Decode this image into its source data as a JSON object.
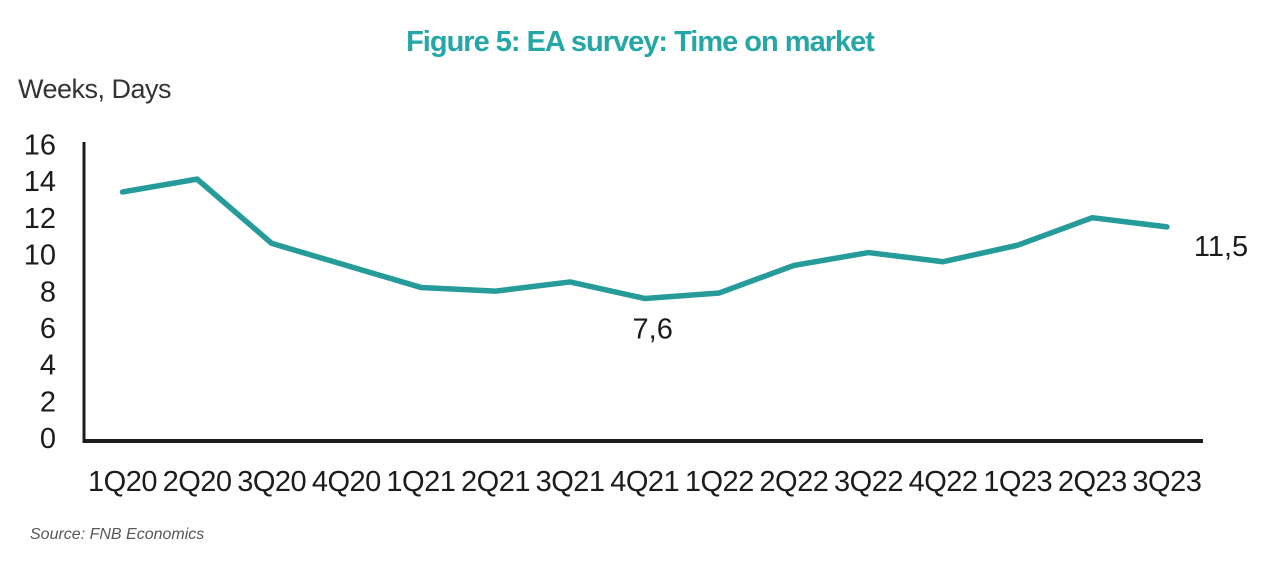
{
  "figure": {
    "title": "Figure 5: EA survey: Time on market",
    "y_axis_unit": "Weeks, Days",
    "source": "Source: FNB Economics",
    "colors": {
      "title": "#26A7A7",
      "line": "#259C99",
      "axis": "#1C1C1C",
      "tick": "#1C1C1C",
      "unit": "#333333",
      "source": "#575757"
    }
  },
  "chart_data": {
    "type": "line",
    "title": "Figure 5: EA survey: Time on market",
    "ylabel": "Weeks, Days",
    "xlabel": "",
    "categories": [
      "1Q20",
      "2Q20",
      "3Q20",
      "4Q20",
      "1Q21",
      "2Q21",
      "3Q21",
      "4Q21",
      "1Q22",
      "2Q22",
      "3Q22",
      "4Q22",
      "1Q23",
      "2Q23",
      "3Q23"
    ],
    "series": [
      {
        "name": "Time on market",
        "values": [
          13.4,
          14.1,
          10.6,
          9.4,
          8.2,
          8.0,
          8.5,
          7.6,
          7.9,
          9.4,
          10.1,
          9.6,
          10.5,
          12.0,
          11.5
        ]
      }
    ],
    "ylim": [
      0,
      16
    ],
    "yticks": [
      0,
      2,
      4,
      6,
      8,
      10,
      12,
      14,
      16
    ],
    "grid": false,
    "legend_position": "none",
    "annotations": [
      {
        "category": "4Q21",
        "value": 7.6,
        "text": "7,6",
        "position": "below"
      },
      {
        "category": "3Q23",
        "value": 11.5,
        "text": "11,5",
        "position": "right"
      }
    ],
    "source": "Source: FNB Economics"
  }
}
